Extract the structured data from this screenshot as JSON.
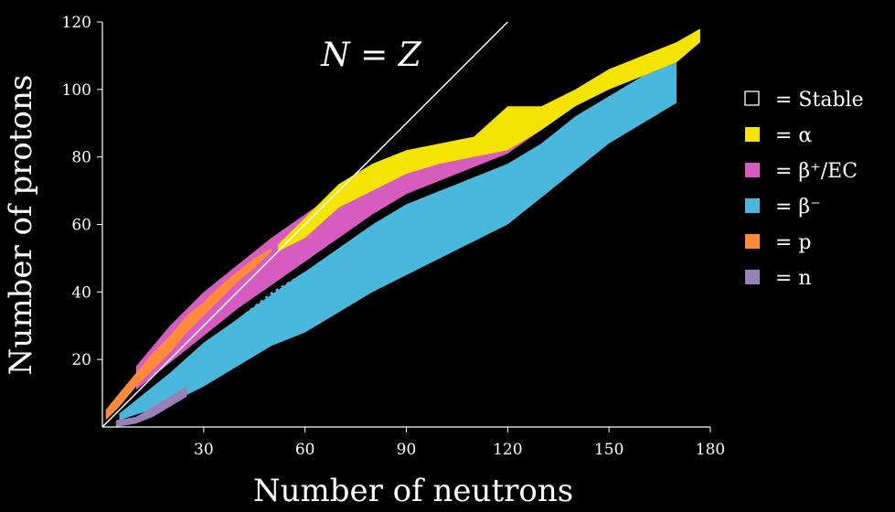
{
  "chart_data": {
    "type": "heatmap",
    "title": "",
    "xlabel": "Number of neutrons",
    "ylabel": "Number of protons",
    "xlim": [
      0,
      180
    ],
    "ylim": [
      0,
      120
    ],
    "xticks": [
      30,
      60,
      90,
      120,
      150,
      180
    ],
    "yticks": [
      20,
      40,
      60,
      80,
      100,
      120
    ],
    "grid": false,
    "legend_position": "right",
    "annotation": {
      "text": "N = Z",
      "line": [
        [
          0,
          0
        ],
        [
          120,
          120
        ]
      ]
    },
    "legend": [
      {
        "key": "stable",
        "symbol": "□",
        "label": "= Stable",
        "color": "#000000"
      },
      {
        "key": "alpha",
        "symbol": "■",
        "label": "= α",
        "color": "#f5e400"
      },
      {
        "key": "beta_plus",
        "symbol": "■",
        "label": "= β⁺/EC",
        "color": "#d65cc0"
      },
      {
        "key": "beta_minus",
        "symbol": "■",
        "label": "= β⁻",
        "color": "#4ab8dc"
      },
      {
        "key": "proton",
        "symbol": "■",
        "label": "= p",
        "color": "#ff8a3c"
      },
      {
        "key": "neutron",
        "symbol": "■",
        "label": "= n",
        "color": "#9b7fb8"
      }
    ],
    "series": [
      {
        "name": "Stable",
        "key": "stable",
        "boundary_neutrons": [
          0,
          10,
          20,
          30,
          40,
          50,
          60,
          70,
          80,
          90,
          100,
          110,
          120,
          126
        ],
        "boundary_protons": [
          0,
          10,
          18,
          26,
          33,
          40,
          47,
          54,
          62,
          68,
          72,
          76,
          80,
          83
        ]
      },
      {
        "name": "β⁻",
        "key": "beta_minus",
        "band_neutrons": [
          5,
          20,
          30,
          40,
          50,
          60,
          70,
          80,
          90,
          100,
          110,
          120,
          130,
          140,
          150,
          160,
          170
        ],
        "band_lower_protons": [
          2,
          7,
          12,
          18,
          24,
          28,
          34,
          40,
          45,
          50,
          55,
          60,
          68,
          76,
          84,
          90,
          96
        ],
        "band_upper_protons": [
          4,
          16,
          25,
          32,
          40,
          46,
          53,
          60,
          66,
          70,
          74,
          78,
          84,
          92,
          98,
          104,
          108
        ]
      },
      {
        "name": "β⁺/EC",
        "key": "beta_plus",
        "band_neutrons": [
          10,
          20,
          30,
          40,
          50,
          60,
          70,
          80,
          90,
          100,
          110,
          120,
          130,
          140
        ],
        "band_lower_protons": [
          11,
          19,
          27,
          35,
          42,
          49,
          56,
          63,
          69,
          73,
          77,
          81,
          88,
          95
        ],
        "band_upper_protons": [
          18,
          30,
          40,
          48,
          56,
          63,
          70,
          75,
          79,
          82,
          84,
          86,
          92,
          100
        ]
      },
      {
        "name": "α",
        "key": "alpha",
        "band_neutrons": [
          52,
          60,
          70,
          80,
          90,
          100,
          110,
          120,
          130,
          140,
          150,
          160,
          170,
          177
        ],
        "band_lower_protons": [
          52,
          56,
          65,
          70,
          75,
          78,
          80,
          82,
          88,
          95,
          100,
          104,
          108,
          114
        ],
        "band_upper_protons": [
          54,
          62,
          72,
          78,
          82,
          84,
          86,
          95,
          95,
          100,
          106,
          110,
          114,
          118
        ]
      },
      {
        "name": "p",
        "key": "proton",
        "band_neutrons": [
          1,
          5,
          10,
          15,
          20,
          25,
          30,
          35,
          40,
          45,
          50
        ],
        "band_lower_protons": [
          2,
          6,
          12,
          17,
          22,
          28,
          33,
          38,
          43,
          47,
          52
        ],
        "band_upper_protons": [
          5,
          10,
          16,
          22,
          27,
          33,
          37,
          42,
          46,
          50,
          53
        ]
      },
      {
        "name": "n",
        "key": "neutron",
        "band_neutrons": [
          4,
          10,
          15,
          20,
          25
        ],
        "band_lower_protons": [
          0,
          1,
          3,
          6,
          9
        ],
        "band_upper_protons": [
          2,
          3,
          6,
          9,
          12
        ]
      }
    ]
  }
}
